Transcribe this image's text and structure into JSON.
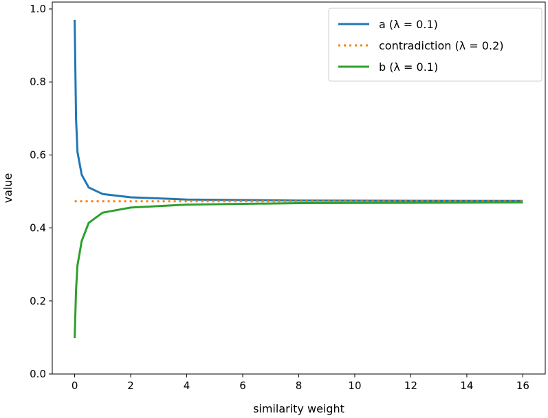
{
  "chart_data": {
    "type": "line",
    "title": "",
    "xlabel": "similarity weight",
    "ylabel": "value",
    "xlim": [
      -0.8,
      16.8
    ],
    "ylim": [
      0.0,
      1.0
    ],
    "xticks": [
      0,
      2,
      4,
      6,
      8,
      10,
      12,
      14,
      16
    ],
    "xtick_labels": [
      "0",
      "2",
      "4",
      "6",
      "8",
      "10",
      "12",
      "14",
      "16"
    ],
    "yticks": [
      0.0,
      0.2,
      0.4,
      0.6,
      0.8,
      1.0
    ],
    "ytick_labels": [
      "0.0",
      "0.2",
      "0.4",
      "0.6",
      "0.8",
      "1.0"
    ],
    "grid": false,
    "legend_position": "top-right",
    "x": [
      0,
      0.05,
      0.1,
      0.25,
      0.5,
      1,
      2,
      4,
      8,
      16
    ],
    "series": [
      {
        "name": "a (λ = 0.1)",
        "color": "#1f77b4",
        "style": "solid",
        "values": [
          0.97,
          0.7,
          0.608,
          0.546,
          0.511,
          0.493,
          0.484,
          0.478,
          0.475,
          0.474
        ]
      },
      {
        "name": "contradiction (λ = 0.2)",
        "color": "#ff7f0e",
        "style": "dotted",
        "values": [
          0.473,
          0.473,
          0.473,
          0.473,
          0.473,
          0.473,
          0.473,
          0.473,
          0.473,
          0.473
        ]
      },
      {
        "name": "b (λ = 0.1)",
        "color": "#2ca02c",
        "style": "solid",
        "values": [
          0.098,
          0.23,
          0.298,
          0.364,
          0.414,
          0.442,
          0.456,
          0.464,
          0.468,
          0.47
        ]
      }
    ]
  }
}
